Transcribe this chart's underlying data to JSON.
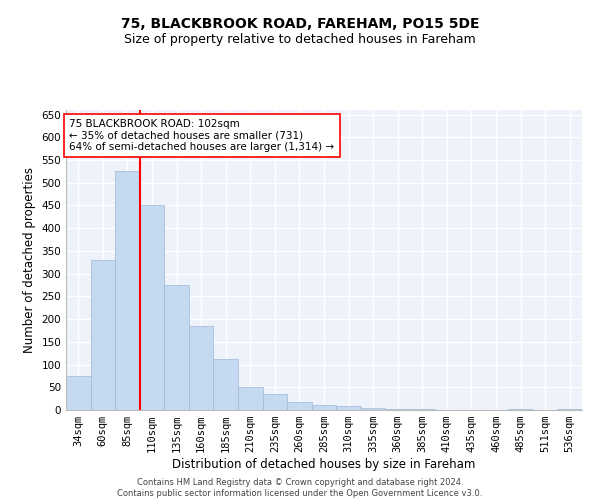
{
  "title1": "75, BLACKBROOK ROAD, FAREHAM, PO15 5DE",
  "title2": "Size of property relative to detached houses in Fareham",
  "xlabel": "Distribution of detached houses by size in Fareham",
  "ylabel": "Number of detached properties",
  "categories": [
    "34sqm",
    "60sqm",
    "85sqm",
    "110sqm",
    "135sqm",
    "160sqm",
    "185sqm",
    "210sqm",
    "235sqm",
    "260sqm",
    "285sqm",
    "310sqm",
    "335sqm",
    "360sqm",
    "385sqm",
    "410sqm",
    "435sqm",
    "460sqm",
    "485sqm",
    "511sqm",
    "536sqm"
  ],
  "values": [
    75,
    330,
    525,
    450,
    275,
    185,
    113,
    50,
    35,
    17,
    12,
    8,
    5,
    3,
    2,
    1,
    0,
    0,
    2,
    1,
    2
  ],
  "bar_color": "#c5d9f1",
  "bar_edge_color": "#a0b8d8",
  "vline_x": 2.5,
  "vline_color": "red",
  "annotation_text": "75 BLACKBROOK ROAD: 102sqm\n← 35% of detached houses are smaller (731)\n64% of semi-detached houses are larger (1,314) →",
  "annotation_box_color": "white",
  "annotation_box_edge": "red",
  "footer1": "Contains HM Land Registry data © Crown copyright and database right 2024.",
  "footer2": "Contains public sector information licensed under the Open Government Licence v3.0.",
  "ylim": [
    0,
    660
  ],
  "yticks": [
    0,
    50,
    100,
    150,
    200,
    250,
    300,
    350,
    400,
    450,
    500,
    550,
    600,
    650
  ],
  "bg_color": "#eef2fa",
  "grid_color": "white",
  "title1_fontsize": 10,
  "title2_fontsize": 9,
  "tick_fontsize": 7.5,
  "xlabel_fontsize": 8.5,
  "ylabel_fontsize": 8.5,
  "annotation_fontsize": 7.5,
  "footer_fontsize": 6.0
}
